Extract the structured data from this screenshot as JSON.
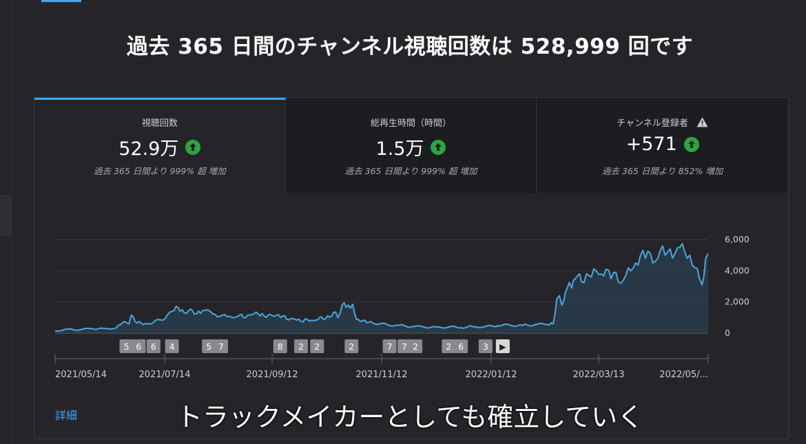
{
  "headline": "過去 365 日間のチャンネル視聴回数は 528,999 回です",
  "metrics": [
    {
      "title": "視聴回数",
      "value": "52.9万",
      "change": "過去 365 日間より 999% 超 増加"
    },
    {
      "title": "総再生時間（時間）",
      "value": "1.5万",
      "change": "過去 365 日間より 999% 超 増加"
    },
    {
      "title": "チャンネル登録者",
      "value": "+571",
      "change": "過去 365 日間より 852% 増加"
    }
  ],
  "details_link": "詳細",
  "subtitle": "トラックメイカーとしても確立していく",
  "colors": {
    "accent": "#3ea6ff",
    "positive": "#2ba640",
    "line": "#4aa8e0"
  },
  "chart_data": {
    "type": "area",
    "x_ticks": [
      "2021/05/14",
      "2021/07/14",
      "2021/09/12",
      "2021/11/12",
      "2022/01/12",
      "2022/03/13",
      "2022/05/..."
    ],
    "y_ticks": [
      "6,000",
      "4,000",
      "2,000",
      "0"
    ],
    "ylim": [
      0,
      6000
    ],
    "x_days": 372,
    "y_labels_position": "right",
    "grid": true,
    "series": [
      {
        "points": [
          [
            0,
            150
          ],
          [
            10,
            250
          ],
          [
            20,
            220
          ],
          [
            30,
            300
          ],
          [
            40,
            280
          ],
          [
            50,
            350
          ],
          [
            55,
            700
          ],
          [
            60,
            600
          ],
          [
            62,
            1150
          ],
          [
            65,
            750
          ],
          [
            70,
            650
          ],
          [
            75,
            600
          ],
          [
            80,
            700
          ],
          [
            90,
            1000
          ],
          [
            95,
            1400
          ],
          [
            100,
            1650
          ],
          [
            105,
            1300
          ],
          [
            110,
            1550
          ],
          [
            115,
            1250
          ],
          [
            120,
            1450
          ],
          [
            130,
            1200
          ],
          [
            140,
            1050
          ],
          [
            150,
            1150
          ],
          [
            155,
            1000
          ],
          [
            160,
            1200
          ],
          [
            165,
            1250
          ],
          [
            170,
            1100
          ],
          [
            175,
            1200
          ],
          [
            180,
            1150
          ],
          [
            185,
            1100
          ],
          [
            190,
            850
          ],
          [
            195,
            900
          ],
          [
            200,
            750
          ],
          [
            205,
            900
          ],
          [
            210,
            800
          ],
          [
            215,
            1000
          ],
          [
            220,
            950
          ],
          [
            225,
            1100
          ],
          [
            228,
            1350
          ],
          [
            230,
            1000
          ],
          [
            235,
            1950
          ],
          [
            240,
            1600
          ],
          [
            242,
            1850
          ],
          [
            245,
            900
          ],
          [
            250,
            800
          ],
          [
            255,
            700
          ],
          [
            260,
            600
          ],
          [
            270,
            550
          ],
          [
            280,
            500
          ],
          [
            290,
            420
          ],
          [
            300,
            400
          ],
          [
            310,
            380
          ],
          [
            320,
            400
          ],
          [
            330,
            350
          ],
          [
            340,
            420
          ],
          [
            350,
            420
          ],
          [
            360,
            480
          ],
          [
            370,
            520
          ],
          [
            380,
            500
          ],
          [
            390,
            550
          ],
          [
            400,
            560
          ],
          [
            405,
            600
          ],
          [
            408,
            2200
          ],
          [
            410,
            2400
          ],
          [
            412,
            1800
          ],
          [
            415,
            2650
          ],
          [
            418,
            3250
          ],
          [
            420,
            2900
          ],
          [
            423,
            3500
          ],
          [
            425,
            3700
          ],
          [
            428,
            3300
          ],
          [
            432,
            3800
          ],
          [
            436,
            3600
          ],
          [
            440,
            4000
          ],
          [
            444,
            3800
          ],
          [
            448,
            4100
          ],
          [
            452,
            3500
          ],
          [
            456,
            3900
          ],
          [
            460,
            3200
          ],
          [
            464,
            3700
          ],
          [
            468,
            4000
          ],
          [
            472,
            4500
          ],
          [
            476,
            5000
          ],
          [
            478,
            5300
          ],
          [
            480,
            4800
          ],
          [
            484,
            5100
          ],
          [
            488,
            4600
          ],
          [
            492,
            5300
          ],
          [
            496,
            5000
          ],
          [
            500,
            5400
          ],
          [
            504,
            5100
          ],
          [
            508,
            5500
          ],
          [
            512,
            5200
          ],
          [
            516,
            5000
          ],
          [
            520,
            4200
          ],
          [
            524,
            3500
          ],
          [
            526,
            3100
          ],
          [
            529,
            4800
          ],
          [
            531,
            5100
          ]
        ]
      }
    ],
    "annotations": [
      {
        "label": "5",
        "day": 58
      },
      {
        "label": "6",
        "day": 68
      },
      {
        "label": "6",
        "day": 80
      },
      {
        "label": "4",
        "day": 95
      },
      {
        "label": "5",
        "day": 125
      },
      {
        "label": "7",
        "day": 135
      },
      {
        "label": "8",
        "day": 183
      },
      {
        "label": "2",
        "day": 200
      },
      {
        "label": "2",
        "day": 213
      },
      {
        "label": "2",
        "day": 241
      },
      {
        "label": "7",
        "day": 272
      },
      {
        "label": "7",
        "day": 284
      },
      {
        "label": "2",
        "day": 293
      },
      {
        "label": "2",
        "day": 320
      },
      {
        "label": "6",
        "day": 330
      },
      {
        "label": "3",
        "day": 350
      },
      {
        "label": "▶",
        "day": 364
      }
    ]
  }
}
